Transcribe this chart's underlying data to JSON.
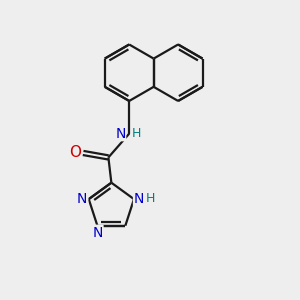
{
  "bg_color": "#eeeeee",
  "bond_color": "#1a1a1a",
  "N_color": "#0000cc",
  "O_color": "#cc0000",
  "NH_triazole_color": "#008080",
  "NH_amide_color": "#0000cc",
  "H_amide_color": "#008080",
  "font_size": 10,
  "line_width": 1.6,
  "fig_width": 3.0,
  "fig_height": 3.0,
  "dpi": 100,
  "xlim": [
    0,
    10
  ],
  "ylim": [
    0,
    10
  ]
}
